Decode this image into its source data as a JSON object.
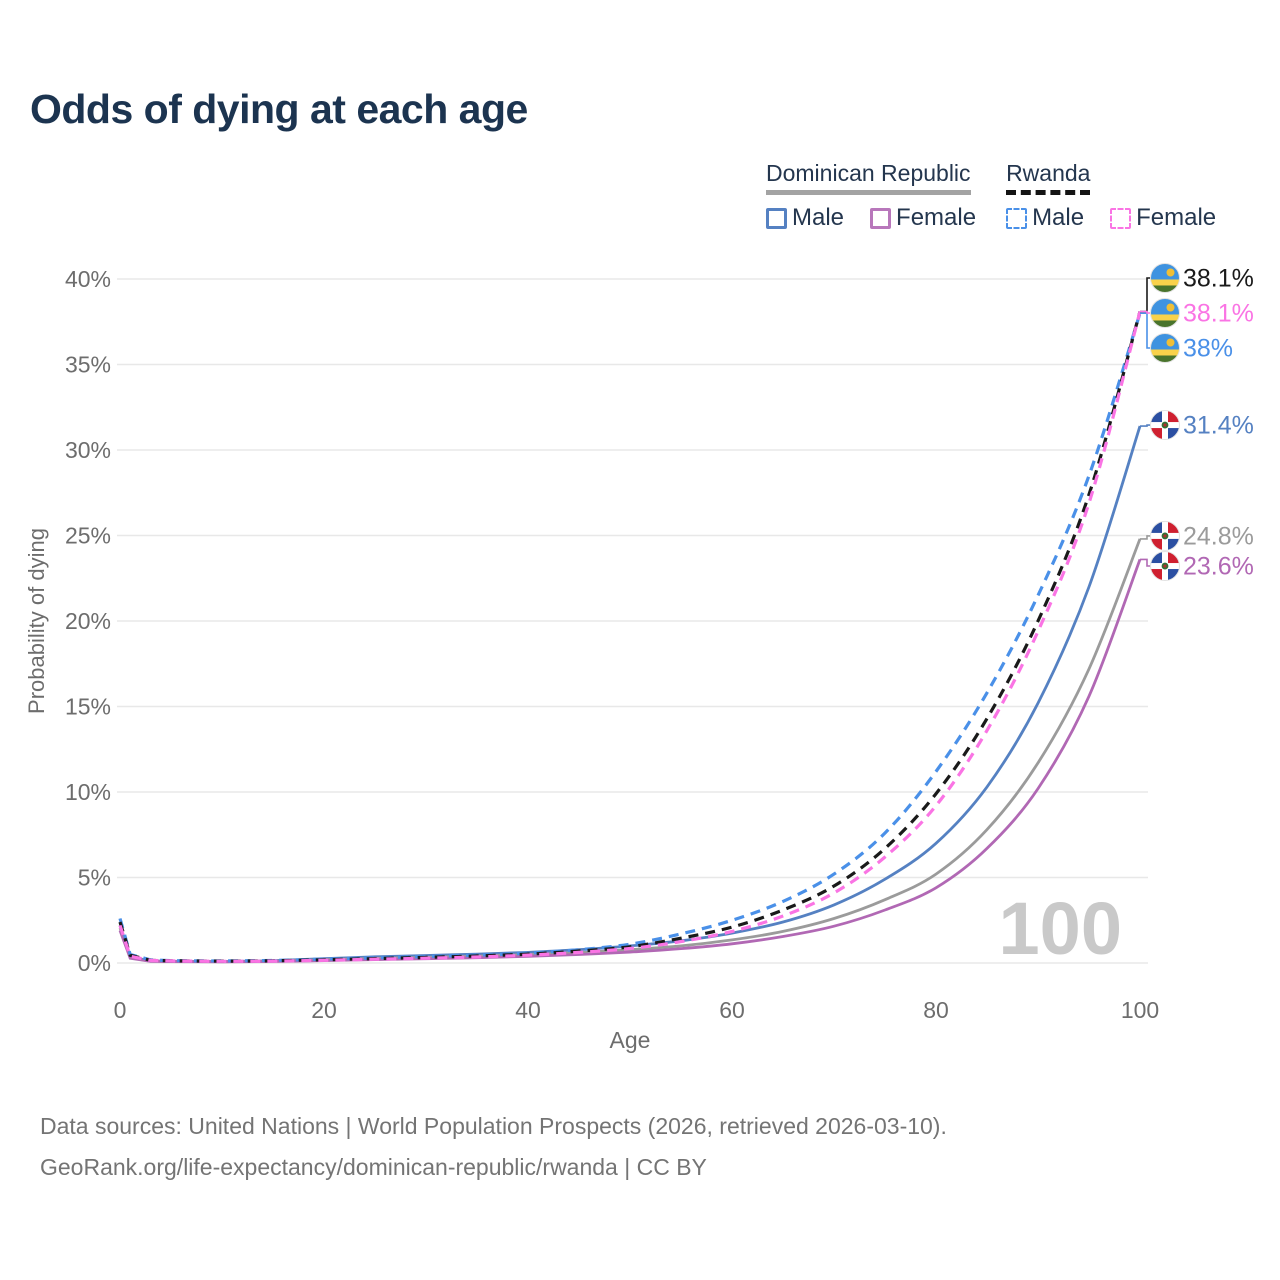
{
  "title": "Odds of dying at each age",
  "legend": {
    "groups": [
      {
        "id": "dominican-republic",
        "label": "Dominican Republic",
        "underline_style": "solid",
        "underline_color": "#a3a3a3",
        "items": [
          {
            "label": "Male",
            "swatch_color": "#5581c2",
            "swatch_style": "solid"
          },
          {
            "label": "Female",
            "swatch_color": "#b877bb",
            "swatch_style": "solid"
          }
        ]
      },
      {
        "id": "rwanda",
        "label": "Rwanda",
        "underline_style": "dashed",
        "underline_color": "#141414",
        "items": [
          {
            "label": "Male",
            "swatch_color": "#4a90e8",
            "swatch_style": "dashed"
          },
          {
            "label": "Female",
            "swatch_color": "#fa74e4",
            "swatch_style": "dashed"
          }
        ]
      }
    ]
  },
  "chart_data": {
    "type": "line",
    "title": "Odds of dying at each age",
    "xlabel": "Age",
    "ylabel": "Probability of dying",
    "xlim": [
      0,
      100
    ],
    "ylim_percent": [
      0,
      40
    ],
    "x_ticks": [
      0,
      20,
      40,
      60,
      80,
      100
    ],
    "y_ticks_percent": [
      0,
      5,
      10,
      15,
      20,
      25,
      30,
      35,
      40
    ],
    "y_tick_labels": [
      "0%",
      "5%",
      "10%",
      "15%",
      "20%",
      "25%",
      "30%",
      "35%",
      "40%"
    ],
    "grid": "horizontal",
    "legend_position": "top-right",
    "hover_age_watermark": "100",
    "ages": [
      0,
      1,
      3,
      5,
      10,
      15,
      20,
      25,
      30,
      35,
      40,
      45,
      50,
      55,
      60,
      65,
      70,
      75,
      80,
      85,
      90,
      95,
      100
    ],
    "series": [
      {
        "id": "dr-male",
        "country": "Dominican Republic",
        "sex": "Male",
        "flag": "do",
        "color": "#5581c2",
        "dash": "solid",
        "end_label": "31.4%",
        "end_value": 31.4,
        "values_percent": [
          2.2,
          0.35,
          0.12,
          0.1,
          0.09,
          0.14,
          0.25,
          0.36,
          0.44,
          0.52,
          0.62,
          0.78,
          1.0,
          1.3,
          1.75,
          2.4,
          3.4,
          4.9,
          7.0,
          10.3,
          15.2,
          22.0,
          31.4
        ]
      },
      {
        "id": "dr-both",
        "country": "Dominican Republic",
        "sex": "Both sexes",
        "flag": "do",
        "color": "#9b9b9b",
        "dash": "solid",
        "end_label": "24.8%",
        "end_value": 24.8,
        "values_percent": [
          2.05,
          0.3,
          0.11,
          0.09,
          0.08,
          0.11,
          0.19,
          0.27,
          0.33,
          0.4,
          0.49,
          0.61,
          0.78,
          1.0,
          1.35,
          1.85,
          2.6,
          3.7,
          5.2,
          7.8,
          11.7,
          17.2,
          24.8
        ]
      },
      {
        "id": "dr-female",
        "country": "Dominican Republic",
        "sex": "Female",
        "flag": "do",
        "color": "#b168b4",
        "dash": "solid",
        "end_label": "23.6%",
        "end_value": 23.6,
        "values_percent": [
          1.9,
          0.28,
          0.1,
          0.08,
          0.07,
          0.09,
          0.14,
          0.2,
          0.25,
          0.31,
          0.39,
          0.5,
          0.64,
          0.84,
          1.12,
          1.55,
          2.15,
          3.1,
          4.4,
          6.7,
          10.2,
          15.6,
          23.6
        ]
      },
      {
        "id": "rwanda-male",
        "country": "Rwanda",
        "sex": "Male",
        "flag": "rw",
        "color": "#4a90e8",
        "dash": "dashed",
        "end_label": "38%",
        "end_value": 38.0,
        "values_percent": [
          2.6,
          0.5,
          0.18,
          0.14,
          0.12,
          0.15,
          0.22,
          0.3,
          0.38,
          0.46,
          0.58,
          0.78,
          1.1,
          1.7,
          2.5,
          3.6,
          5.2,
          7.6,
          11.2,
          15.8,
          21.5,
          28.5,
          38.0
        ]
      },
      {
        "id": "rwanda-both",
        "country": "Rwanda",
        "sex": "Both sexes",
        "flag": "rw",
        "color": "#1a1a1a",
        "dash": "dashed",
        "end_label": "38.1%",
        "end_value": 38.1,
        "values_percent": [
          2.4,
          0.45,
          0.16,
          0.13,
          0.11,
          0.13,
          0.19,
          0.26,
          0.33,
          0.41,
          0.52,
          0.7,
          0.95,
          1.45,
          2.1,
          3.1,
          4.5,
          6.7,
          9.9,
          14.3,
          20.0,
          27.4,
          38.1
        ]
      },
      {
        "id": "rwanda-female",
        "country": "Rwanda",
        "sex": "Female",
        "flag": "rw",
        "color": "#fa74e4",
        "dash": "dashed",
        "end_label": "38.1%",
        "end_value": 38.1,
        "values_percent": [
          2.2,
          0.4,
          0.15,
          0.12,
          0.1,
          0.11,
          0.16,
          0.22,
          0.28,
          0.35,
          0.46,
          0.62,
          0.85,
          1.25,
          1.85,
          2.75,
          4.1,
          6.2,
          9.2,
          13.6,
          19.4,
          26.9,
          38.1
        ]
      }
    ]
  },
  "footer": {
    "line1": "Data sources: United Nations | World Population Prospects (2026, retrieved 2026-03-10).",
    "line2": "GeoRank.org/life-expectancy/dominican-republic/rwanda | CC BY"
  }
}
